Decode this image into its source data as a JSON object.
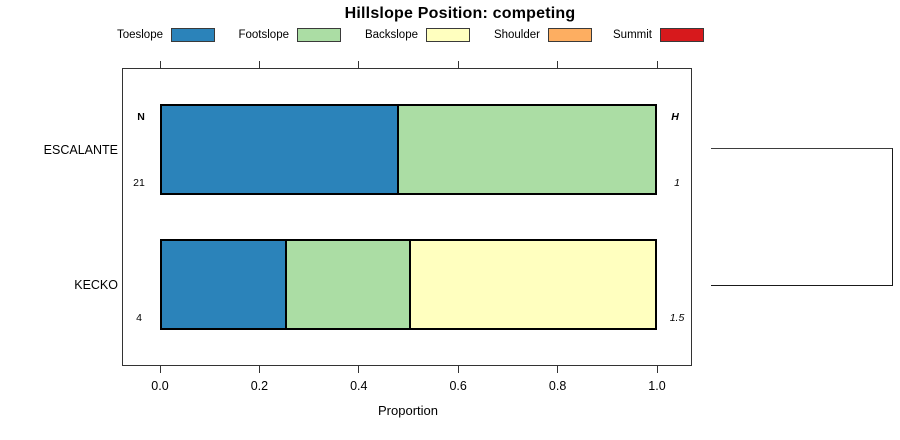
{
  "chart_data": {
    "type": "bar",
    "orientation": "horizontal-stacked",
    "title": "Hillslope Position: competing",
    "xlabel": "Proportion",
    "xlim": [
      0,
      1
    ],
    "x_ticks": [
      "0.0",
      "0.2",
      "0.4",
      "0.6",
      "0.8",
      "1.0"
    ],
    "grid": false,
    "legend_position": "top",
    "legend": [
      {
        "label": "Toeslope",
        "color": "#2B83BA"
      },
      {
        "label": "Footslope",
        "color": "#ABDDA4"
      },
      {
        "label": "Backslope",
        "color": "#FFFFBF"
      },
      {
        "label": "Shoulder",
        "color": "#FDAE61"
      },
      {
        "label": "Summit",
        "color": "#D7191C"
      }
    ],
    "annotation_headers": {
      "left": "N",
      "right": "H"
    },
    "rows": [
      {
        "name": "ESCALANTE",
        "n": "21",
        "shannon_entropy": "1",
        "segments": [
          {
            "position": "Toeslope",
            "proportion": 0.476
          },
          {
            "position": "Footslope",
            "proportion": 0.524
          }
        ]
      },
      {
        "name": "KECKO",
        "n": "4",
        "shannon_entropy": "1.5",
        "segments": [
          {
            "position": "Toeslope",
            "proportion": 0.25
          },
          {
            "position": "Footslope",
            "proportion": 0.25
          },
          {
            "position": "Backslope",
            "proportion": 0.5
          }
        ]
      }
    ],
    "dendrogram": {
      "leaves": [
        "ESCALANTE",
        "KECKO"
      ],
      "joined": true
    }
  }
}
